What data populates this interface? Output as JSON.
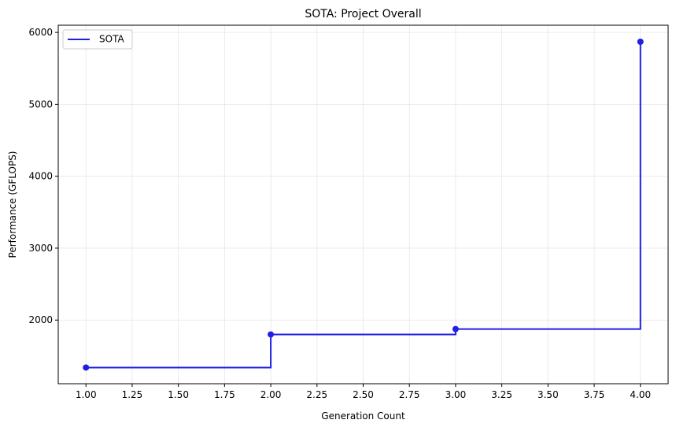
{
  "chart_data": {
    "type": "line",
    "step": "post",
    "title": "SOTA: Project Overall",
    "xlabel": "Generation Count",
    "ylabel": "Performance (GFLOPS)",
    "xlim": [
      0.85,
      4.15
    ],
    "ylim": [
      1115,
      6100
    ],
    "xticks": [
      1.0,
      1.25,
      1.5,
      1.75,
      2.0,
      2.25,
      2.5,
      2.75,
      3.0,
      3.25,
      3.5,
      3.75,
      4.0
    ],
    "xtick_labels": [
      "1.00",
      "1.25",
      "1.50",
      "1.75",
      "2.00",
      "2.25",
      "2.50",
      "2.75",
      "3.00",
      "3.25",
      "3.50",
      "3.75",
      "4.00"
    ],
    "yticks": [
      2000,
      3000,
      4000,
      5000,
      6000
    ],
    "ytick_labels": [
      "2000",
      "3000",
      "4000",
      "5000",
      "6000"
    ],
    "grid": true,
    "legend_position": "top-left",
    "series": [
      {
        "name": "SOTA",
        "color": "#1f1fe6",
        "x": [
          1,
          2,
          3,
          4
        ],
        "y": [
          1340,
          1800,
          1875,
          5870
        ]
      }
    ]
  }
}
